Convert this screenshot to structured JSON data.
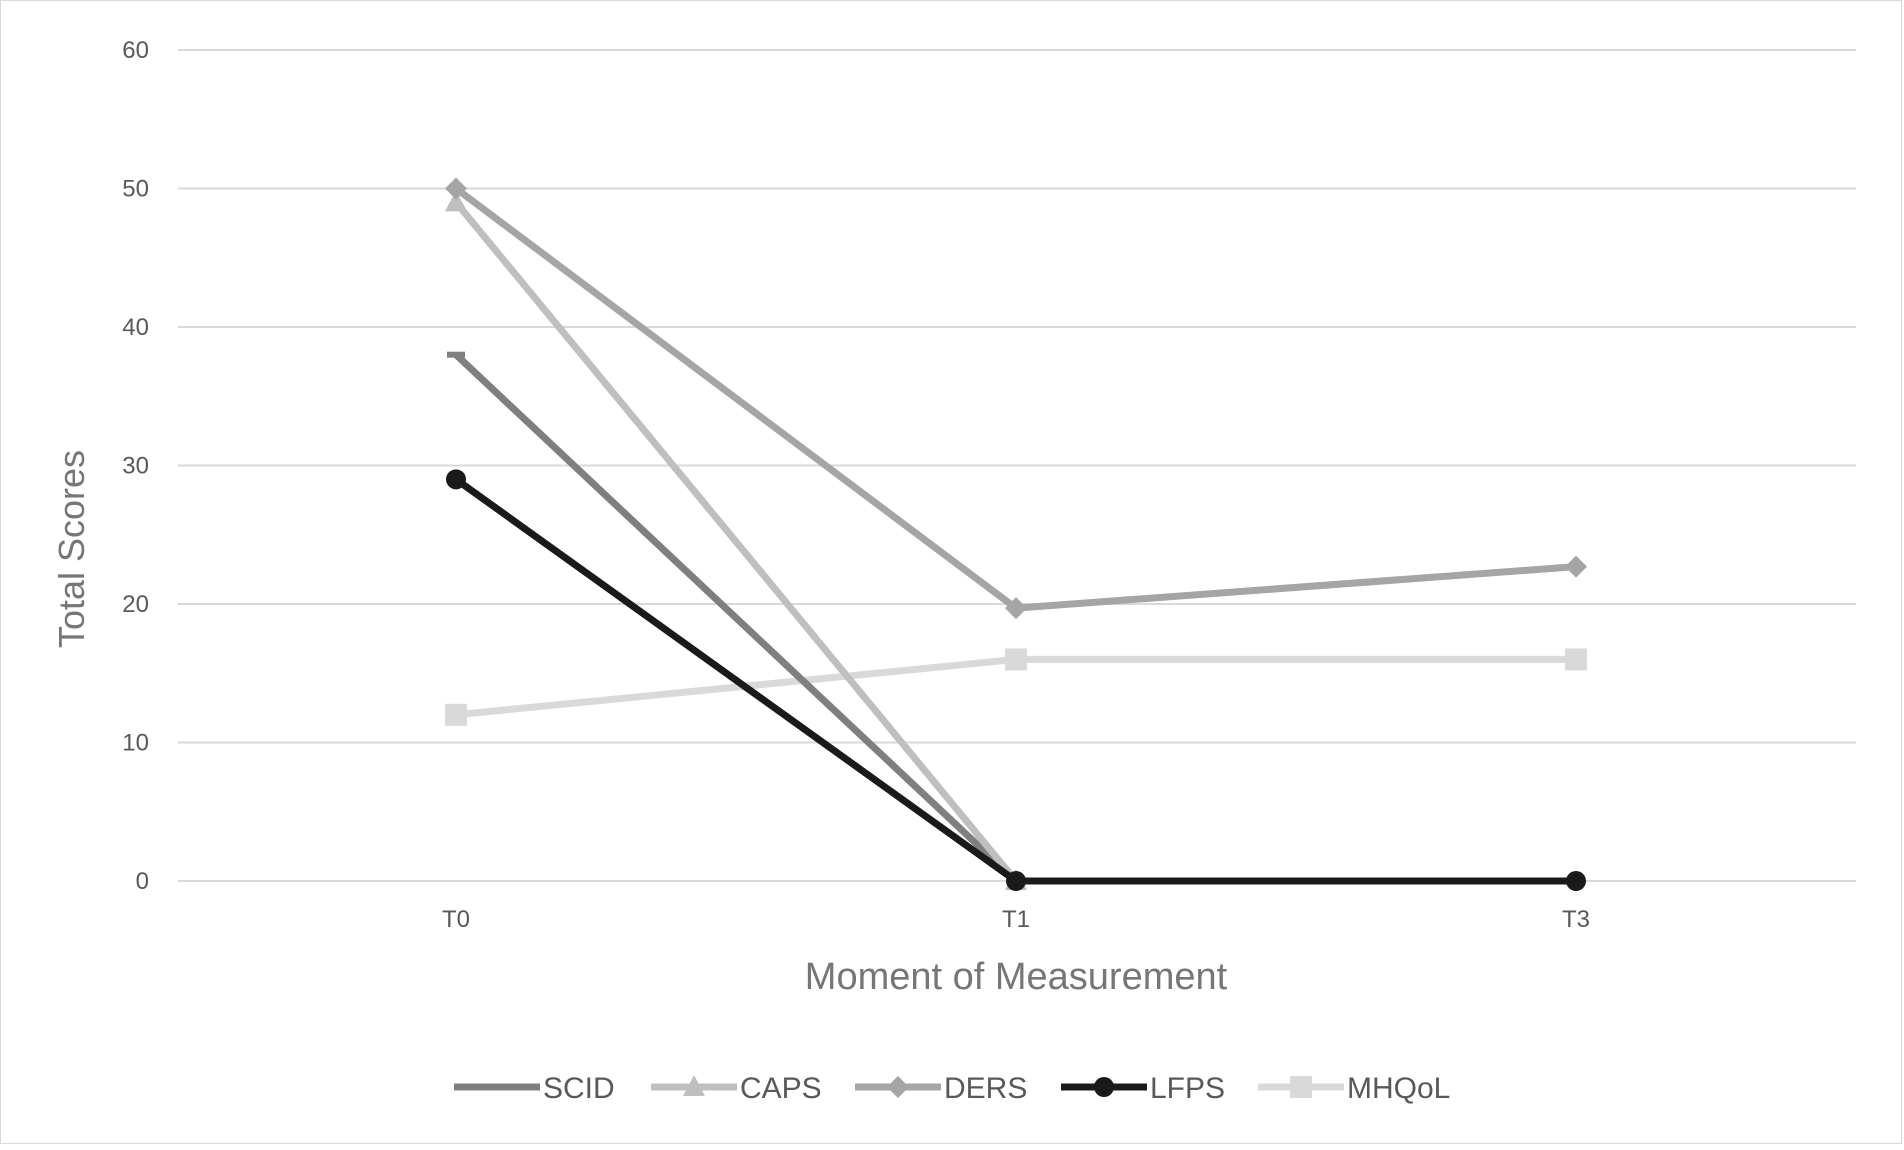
{
  "chart_data": {
    "type": "line",
    "title": "",
    "xlabel": "Moment of Measurement",
    "ylabel": "Total Scores",
    "categories": [
      "T0",
      "T1",
      "T3"
    ],
    "ylim": [
      0,
      60
    ],
    "yticks": [
      0,
      10,
      20,
      30,
      40,
      50,
      60
    ],
    "grid": true,
    "legend_position": "bottom",
    "series": [
      {
        "name": "SCID",
        "values": [
          38,
          0,
          null
        ],
        "color": "#7f7f7f",
        "marker": "dash"
      },
      {
        "name": "CAPS",
        "values": [
          49,
          0,
          null
        ],
        "color": "#bfbfbf",
        "marker": "triangle"
      },
      {
        "name": "DERS",
        "values": [
          50,
          19.7,
          22.7
        ],
        "color": "#a5a5a5",
        "marker": "diamond"
      },
      {
        "name": "LFPS",
        "values": [
          29,
          0,
          0
        ],
        "color": "#1a1a1a",
        "marker": "circle"
      },
      {
        "name": "MHQoL",
        "values": [
          12,
          16,
          16
        ],
        "color": "#d9d9d9",
        "marker": "square"
      }
    ]
  }
}
